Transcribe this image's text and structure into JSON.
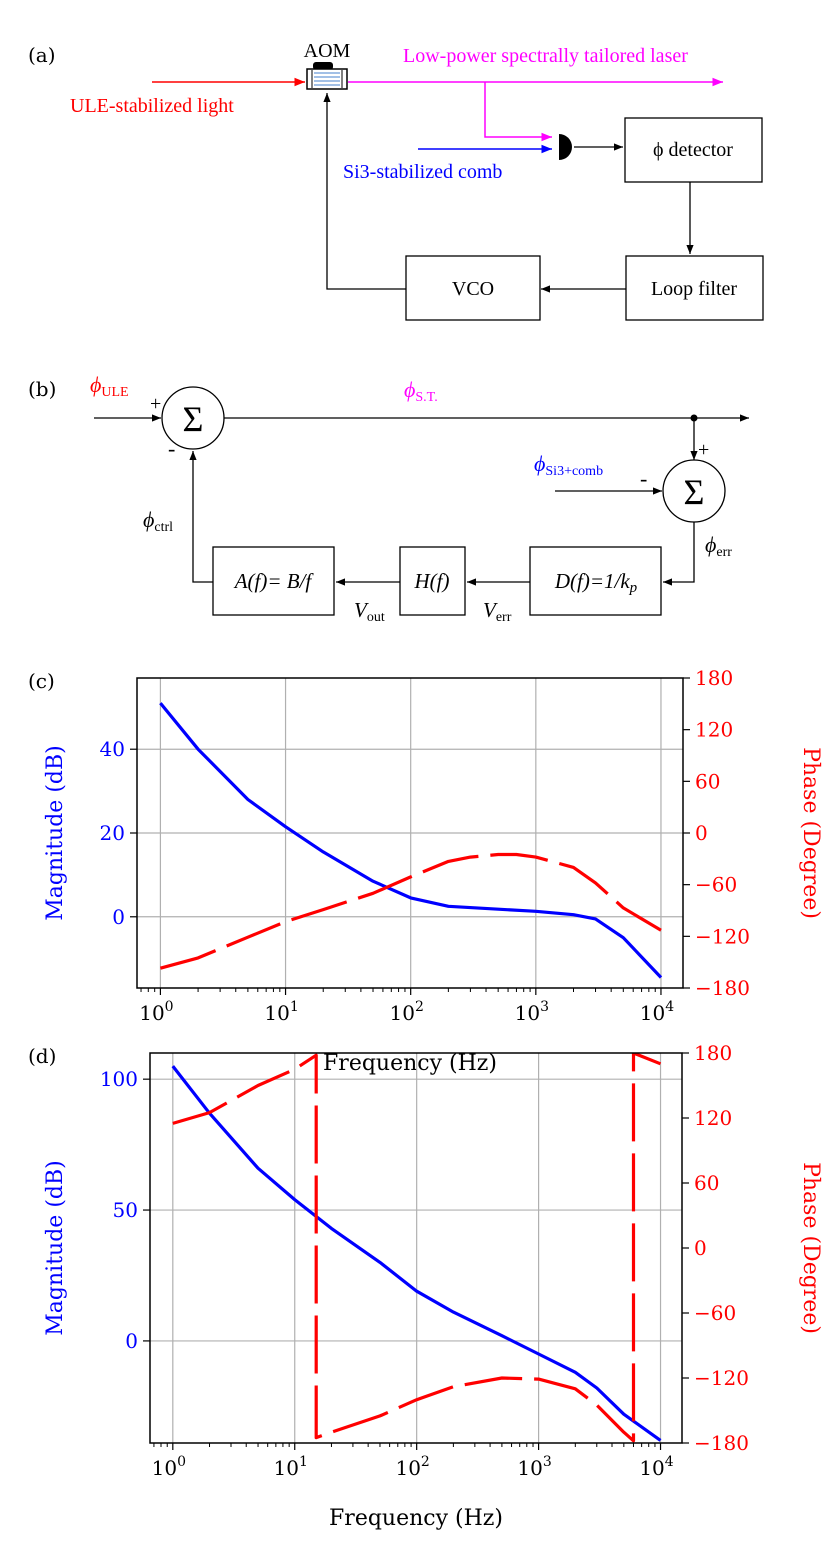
{
  "colors": {
    "ule": "#ff0000",
    "st": "#ff00ff",
    "si3": "#0000ff",
    "magnitude": "#0000ff",
    "phase": "#ff0000",
    "grid": "#b0b0b0",
    "ink": "#000000"
  },
  "panel_a": {
    "label": "(a)",
    "aom_label": "AOM",
    "ule_label": "ULE-stabilized light",
    "laser_label": "Low-power spectrally tailored laser",
    "comb_label": "Si3-stabilized comb",
    "detector_label": "ϕ detector",
    "loop_filter_label": "Loop filter",
    "vco_label": "VCO"
  },
  "panel_b": {
    "label": "(b)",
    "phi": "ϕ",
    "ule_sub": "ULE",
    "st_sub": "S.T.",
    "si3_sub": "Si3+comb",
    "err_sub": "err",
    "ctrl_sub": "ctrl",
    "sum_symbol": "Σ",
    "plus": "+",
    "minus": "-",
    "a_block": "A(f)= B/f",
    "h_block": "H(f)",
    "d_block": "D(f)=1/k",
    "d_sub": "p",
    "v": "V",
    "vout_sub": "out",
    "verr_sub": "err"
  },
  "chart_data": [
    {
      "panel": "(c)",
      "type": "line",
      "xlabel": "Frequency (Hz)",
      "ylabel": "Magnitude (dB)",
      "y2label": "Phase (Degree)",
      "xscale": "log",
      "xlim": [
        0.65,
        15000
      ],
      "ylim": [
        -17,
        57
      ],
      "y2lim": [
        -180,
        180
      ],
      "xticks": [
        "10^0",
        "10^1",
        "10^2",
        "10^3",
        "10^4"
      ],
      "yticks": [
        0,
        20,
        40
      ],
      "y2ticks": [
        180,
        120,
        60,
        0,
        -60,
        -120,
        -180
      ],
      "grid": true,
      "series": [
        {
          "axis": "left",
          "style": "solid",
          "color": "#0000ff",
          "x": [
            1,
            2,
            5,
            10,
            20,
            50,
            100,
            200,
            500,
            1000,
            2000,
            3000,
            5000,
            10000
          ],
          "y": [
            51,
            40,
            28,
            21.5,
            15.5,
            8.5,
            4.5,
            2.5,
            1.8,
            1.3,
            0.5,
            -0.5,
            -5,
            -14.5
          ]
        },
        {
          "axis": "right",
          "style": "dashed",
          "color": "#ff0000",
          "x": [
            1,
            2,
            5,
            10,
            20,
            50,
            100,
            200,
            300,
            500,
            700,
            1000,
            2000,
            3000,
            5000,
            10000
          ],
          "y": [
            -157,
            -145,
            -121,
            -103,
            -89,
            -70,
            -51,
            -33,
            -28,
            -25,
            -25,
            -28,
            -40,
            -58,
            -87,
            -113
          ]
        }
      ]
    },
    {
      "panel": "(d)",
      "type": "line",
      "xlabel": "Frequency (Hz)",
      "ylabel": "Magnitude (dB)",
      "y2label": "Phase (Degree)",
      "xscale": "log",
      "xlim": [
        0.65,
        15000
      ],
      "ylim": [
        -39,
        110
      ],
      "y2lim": [
        -180,
        180
      ],
      "xticks": [
        "10^0",
        "10^1",
        "10^2",
        "10^3",
        "10^4"
      ],
      "yticks": [
        0,
        50,
        100
      ],
      "y2ticks": [
        180,
        120,
        60,
        0,
        -60,
        -120,
        -180
      ],
      "grid": true,
      "series": [
        {
          "axis": "left",
          "style": "solid",
          "color": "#0000ff",
          "x": [
            1,
            2,
            5,
            10,
            20,
            50,
            100,
            200,
            500,
            1000,
            2000,
            3000,
            5000,
            10000
          ],
          "y": [
            105,
            87,
            66,
            54,
            43,
            30,
            19,
            11,
            2,
            -5,
            -12,
            -18,
            -28,
            -38
          ]
        },
        {
          "axis": "right",
          "style": "dashed",
          "color": "#ff0000",
          "x": [
            1,
            2,
            5,
            10,
            15,
            15,
            20,
            50,
            100,
            200,
            500,
            1000,
            2000,
            3000,
            5000,
            6000,
            6000,
            10000
          ],
          "y": [
            115,
            125,
            150,
            165,
            178,
            -175,
            -170,
            -155,
            -140,
            -128,
            -120,
            -121,
            -130,
            -145,
            -170,
            -178,
            180,
            170
          ]
        }
      ]
    }
  ]
}
